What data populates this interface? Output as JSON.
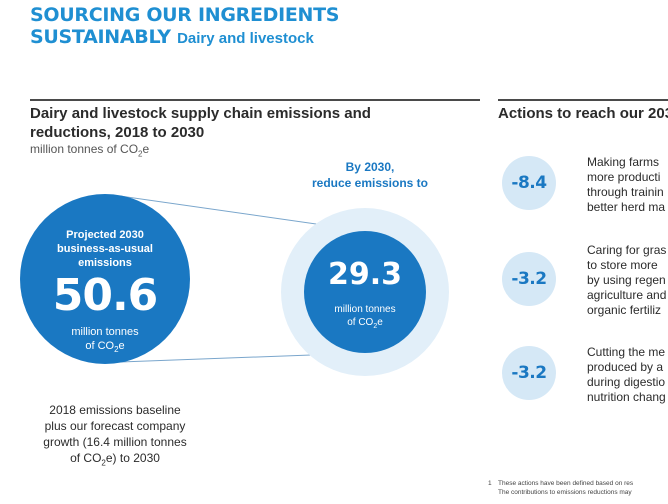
{
  "header": {
    "line1": "SOURCING OUR INGREDIENTS",
    "line2": "SUSTAINABLY",
    "subtitle": "Dairy and livestock"
  },
  "section": {
    "title": "Dairy and livestock supply chain emissions and reductions, 2018 to 2030",
    "unit": "million tonnes of CO2e"
  },
  "bau": {
    "label_line1": "Projected 2030",
    "label_line2": "business-as-usual",
    "label_line3": "emissions",
    "value": "50.6",
    "unit_line1": "million tonnes",
    "unit_line2": "of CO2e"
  },
  "target": {
    "head_line1": "By 2030,",
    "head_line2": "reduce emissions to",
    "value": "29.3",
    "unit_line1": "million tonnes",
    "unit_line2": "of CO2e"
  },
  "baseline": {
    "line1": "2018 emissions baseline",
    "line2": "plus our forecast company",
    "line3": "growth (16.4 million tonnes",
    "line4": "of CO2e) to 2030"
  },
  "actions": {
    "title": "Actions to reach our 203",
    "items": [
      {
        "value": "-8.4",
        "lines": [
          "Making farms",
          "more producti",
          "through trainin",
          "better herd ma"
        ]
      },
      {
        "value": "-3.2",
        "lines": [
          "Caring for gras",
          "to store more",
          "by using regen",
          "agriculture and",
          "organic fertiliz"
        ]
      },
      {
        "value": "-3.2",
        "lines": [
          "Cutting the me",
          "produced by a",
          "during digestio",
          "nutrition chang"
        ]
      }
    ]
  },
  "footnote": {
    "number": "1",
    "line1": "These actions have been defined based on res",
    "line2": "The contributions to emissions reductions may"
  },
  "colors": {
    "brand_blue": "#1a78c2",
    "headline_blue": "#1f8fd2",
    "light_blue": "#d5e8f6"
  }
}
